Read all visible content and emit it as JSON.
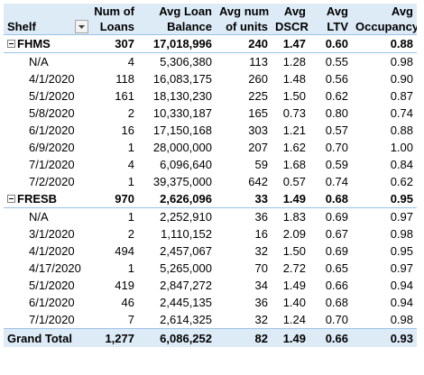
{
  "headers": {
    "shelf": "Shelf",
    "num_loans": [
      "Num of",
      "Loans"
    ],
    "avg_loan_balance": [
      "Avg Loan",
      "Balance"
    ],
    "avg_num_units": [
      "Avg num",
      "of units"
    ],
    "avg_dscr": [
      "Avg",
      "DSCR"
    ],
    "avg_ltv": [
      "Avg",
      "LTV"
    ],
    "avg_occupancy": [
      "Avg",
      "Occupancy"
    ]
  },
  "groups": [
    {
      "label": "FHMS",
      "summary": [
        "307",
        "17,018,996",
        "240",
        "1.47",
        "0.60",
        "0.88"
      ],
      "rows": [
        {
          "label": "N/A",
          "values": [
            "4",
            "5,306,380",
            "113",
            "1.28",
            "0.55",
            "0.98"
          ]
        },
        {
          "label": "4/1/2020",
          "values": [
            "118",
            "16,083,175",
            "260",
            "1.48",
            "0.56",
            "0.90"
          ]
        },
        {
          "label": "5/1/2020",
          "values": [
            "161",
            "18,130,230",
            "225",
            "1.50",
            "0.62",
            "0.87"
          ]
        },
        {
          "label": "5/8/2020",
          "values": [
            "2",
            "10,330,187",
            "165",
            "0.73",
            "0.80",
            "0.74"
          ]
        },
        {
          "label": "6/1/2020",
          "values": [
            "16",
            "17,150,168",
            "303",
            "1.21",
            "0.57",
            "0.88"
          ]
        },
        {
          "label": "6/9/2020",
          "values": [
            "1",
            "28,000,000",
            "207",
            "1.62",
            "0.70",
            "1.00"
          ]
        },
        {
          "label": "7/1/2020",
          "values": [
            "4",
            "6,096,640",
            "59",
            "1.68",
            "0.59",
            "0.84"
          ]
        },
        {
          "label": "7/2/2020",
          "values": [
            "1",
            "39,375,000",
            "642",
            "0.57",
            "0.74",
            "0.62"
          ]
        }
      ]
    },
    {
      "label": "FRESB",
      "summary": [
        "970",
        "2,626,096",
        "33",
        "1.49",
        "0.68",
        "0.95"
      ],
      "rows": [
        {
          "label": "N/A",
          "values": [
            "1",
            "2,252,910",
            "36",
            "1.83",
            "0.69",
            "0.97"
          ]
        },
        {
          "label": "3/1/2020",
          "values": [
            "2",
            "1,110,152",
            "16",
            "2.09",
            "0.67",
            "0.98"
          ]
        },
        {
          "label": "4/1/2020",
          "values": [
            "494",
            "2,457,067",
            "32",
            "1.50",
            "0.69",
            "0.95"
          ]
        },
        {
          "label": "4/17/2020",
          "values": [
            "1",
            "5,265,000",
            "70",
            "2.72",
            "0.65",
            "0.97"
          ]
        },
        {
          "label": "5/1/2020",
          "values": [
            "419",
            "2,847,272",
            "34",
            "1.49",
            "0.66",
            "0.94"
          ]
        },
        {
          "label": "6/1/2020",
          "values": [
            "46",
            "2,445,135",
            "36",
            "1.40",
            "0.68",
            "0.94"
          ]
        },
        {
          "label": "7/1/2020",
          "values": [
            "7",
            "2,614,325",
            "32",
            "1.24",
            "0.70",
            "0.98"
          ]
        }
      ]
    }
  ],
  "grand_total": {
    "label": "Grand Total",
    "values": [
      "1,277",
      "6,086,252",
      "82",
      "1.49",
      "0.66",
      "0.93"
    ]
  },
  "icons": {
    "filter_button": "dropdown-arrow-icon",
    "collapse_button": "minus-box-icon"
  },
  "colors": {
    "header_bg": "#DDEBF7",
    "border": "#9BC2E6"
  }
}
